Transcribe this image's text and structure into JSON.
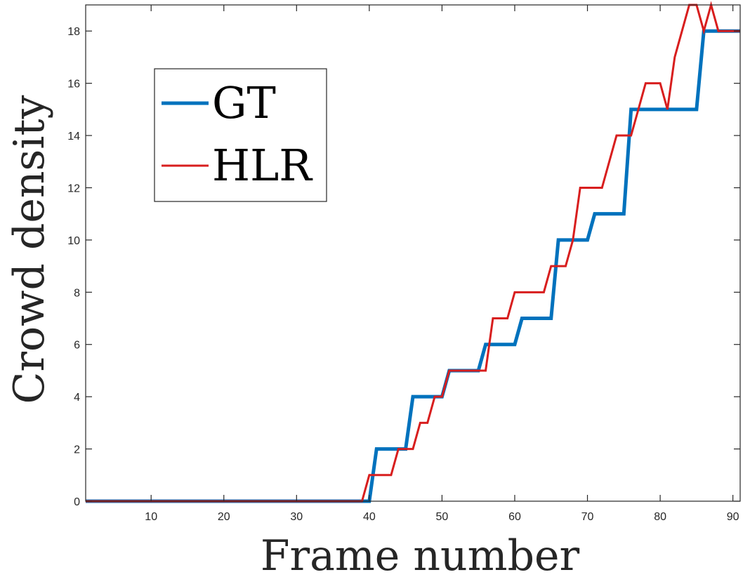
{
  "chart_data": {
    "type": "line",
    "title": "",
    "xlabel": "Frame number",
    "ylabel": "Crowd density",
    "xlim": [
      1,
      91
    ],
    "ylim": [
      0,
      19
    ],
    "xticks": [
      10,
      20,
      30,
      40,
      50,
      60,
      70,
      80,
      90
    ],
    "yticks": [
      0,
      2,
      4,
      6,
      8,
      10,
      12,
      14,
      16,
      18
    ],
    "grid": false,
    "legend": {
      "placement": "top-left"
    },
    "x": [
      1,
      2,
      3,
      4,
      5,
      6,
      7,
      8,
      9,
      10,
      11,
      12,
      13,
      14,
      15,
      16,
      17,
      18,
      19,
      20,
      21,
      22,
      23,
      24,
      25,
      26,
      27,
      28,
      29,
      30,
      31,
      32,
      33,
      34,
      35,
      36,
      37,
      38,
      39,
      40,
      41,
      42,
      43,
      44,
      45,
      46,
      47,
      48,
      49,
      50,
      51,
      52,
      53,
      54,
      55,
      56,
      57,
      58,
      59,
      60,
      61,
      62,
      63,
      64,
      65,
      66,
      67,
      68,
      69,
      70,
      71,
      72,
      73,
      74,
      75,
      76,
      77,
      78,
      79,
      80,
      81,
      82,
      83,
      84,
      85,
      86,
      87,
      88,
      89,
      90,
      91
    ],
    "series": [
      {
        "name": "GT",
        "color": "#0072BD",
        "values": [
          0,
          0,
          0,
          0,
          0,
          0,
          0,
          0,
          0,
          0,
          0,
          0,
          0,
          0,
          0,
          0,
          0,
          0,
          0,
          0,
          0,
          0,
          0,
          0,
          0,
          0,
          0,
          0,
          0,
          0,
          0,
          0,
          0,
          0,
          0,
          0,
          0,
          0,
          0,
          0,
          2,
          2,
          2,
          2,
          2,
          4,
          4,
          4,
          4,
          4,
          5,
          5,
          5,
          5,
          5,
          6,
          6,
          6,
          6,
          6,
          7,
          7,
          7,
          7,
          7,
          10,
          10,
          10,
          10,
          10,
          11,
          11,
          11,
          11,
          11,
          15,
          15,
          15,
          15,
          15,
          15,
          15,
          15,
          15,
          15,
          18,
          18,
          18,
          18,
          18,
          18
        ]
      },
      {
        "name": "HLR",
        "color": "#D81E1E",
        "values": [
          0,
          0,
          0,
          0,
          0,
          0,
          0,
          0,
          0,
          0,
          0,
          0,
          0,
          0,
          0,
          0,
          0,
          0,
          0,
          0,
          0,
          0,
          0,
          0,
          0,
          0,
          0,
          0,
          0,
          0,
          0,
          0,
          0,
          0,
          0,
          0,
          0,
          0,
          0,
          1,
          1,
          1,
          1,
          2,
          2,
          2,
          3,
          3,
          4,
          4,
          5,
          5,
          5,
          5,
          5,
          5,
          7,
          7,
          7,
          8,
          8,
          8,
          8,
          8,
          9,
          9,
          9,
          10,
          12,
          12,
          12,
          12,
          13,
          14,
          14,
          14,
          15,
          16,
          16,
          16,
          15,
          17,
          18,
          19,
          19,
          18,
          19,
          18,
          18,
          18,
          18
        ]
      }
    ]
  }
}
